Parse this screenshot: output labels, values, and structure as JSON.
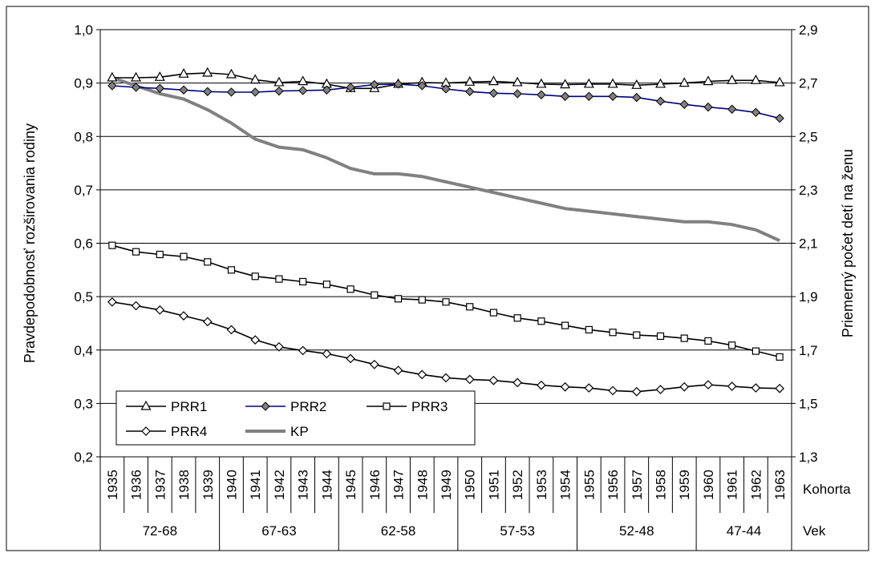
{
  "chart_data": {
    "type": "line",
    "title": "",
    "ylabel_left": "Pravdepodobnosť rozširovania rodiny",
    "ylabel_right": "Priemerný počet detí na ženu",
    "ylim_left": [
      0.2,
      1.0
    ],
    "ylim_right": [
      1.3,
      2.9
    ],
    "yticks_left": [
      "0,2",
      "0,3",
      "0,4",
      "0,5",
      "0,6",
      "0,7",
      "0,8",
      "0,9",
      "1,0"
    ],
    "yticks_right": [
      "1,3",
      "1,5",
      "1,7",
      "1,9",
      "2,1",
      "2,3",
      "2,5",
      "2,7",
      "2,9"
    ],
    "grid": true,
    "legend_position": "bottom-left",
    "x_axis_label": "Kohorta",
    "age_axis_label": "Vek",
    "x": [
      1935,
      1936,
      1937,
      1938,
      1939,
      1940,
      1941,
      1942,
      1943,
      1944,
      1945,
      1946,
      1947,
      1948,
      1949,
      1950,
      1951,
      1952,
      1953,
      1954,
      1955,
      1956,
      1957,
      1958,
      1959,
      1960,
      1961,
      1962,
      1963
    ],
    "age_groups": [
      {
        "label": "72-68",
        "from": 1935,
        "to": 1939
      },
      {
        "label": "67-63",
        "from": 1940,
        "to": 1944
      },
      {
        "label": "62-58",
        "from": 1945,
        "to": 1949
      },
      {
        "label": "57-53",
        "from": 1950,
        "to": 1954
      },
      {
        "label": "52-48",
        "from": 1955,
        "to": 1959
      },
      {
        "label": "47-44",
        "from": 1960,
        "to": 1963
      }
    ],
    "series": [
      {
        "name": "PRR1",
        "axis": "left",
        "color": "#000000",
        "marker": "triangle",
        "values": [
          0.91,
          0.91,
          0.911,
          0.917,
          0.919,
          0.916,
          0.906,
          0.901,
          0.903,
          0.898,
          0.89,
          0.89,
          0.898,
          0.901,
          0.9,
          0.902,
          0.903,
          0.901,
          0.898,
          0.897,
          0.898,
          0.898,
          0.896,
          0.898,
          0.9,
          0.903,
          0.905,
          0.905,
          0.901
        ]
      },
      {
        "name": "PRR2",
        "axis": "left",
        "color": "#000080",
        "marker": "diamond-filled",
        "values": [
          0.895,
          0.892,
          0.89,
          0.887,
          0.884,
          0.883,
          0.883,
          0.885,
          0.886,
          0.887,
          0.892,
          0.897,
          0.898,
          0.895,
          0.889,
          0.884,
          0.881,
          0.88,
          0.878,
          0.875,
          0.875,
          0.875,
          0.873,
          0.866,
          0.86,
          0.855,
          0.851,
          0.845,
          0.834
        ]
      },
      {
        "name": "PRR3",
        "axis": "left",
        "color": "#000000",
        "marker": "square",
        "values": [
          0.596,
          0.584,
          0.579,
          0.575,
          0.565,
          0.55,
          0.538,
          0.533,
          0.528,
          0.523,
          0.514,
          0.503,
          0.496,
          0.494,
          0.49,
          0.481,
          0.47,
          0.46,
          0.454,
          0.446,
          0.438,
          0.433,
          0.428,
          0.426,
          0.422,
          0.417,
          0.409,
          0.398,
          0.387
        ]
      },
      {
        "name": "PRR4",
        "axis": "left",
        "color": "#000000",
        "marker": "diamond",
        "values": [
          0.49,
          0.483,
          0.475,
          0.464,
          0.453,
          0.438,
          0.419,
          0.406,
          0.399,
          0.393,
          0.384,
          0.373,
          0.362,
          0.354,
          0.348,
          0.345,
          0.343,
          0.339,
          0.334,
          0.331,
          0.329,
          0.324,
          0.322,
          0.326,
          0.331,
          0.335,
          0.332,
          0.329,
          0.328
        ]
      },
      {
        "name": "KP",
        "axis": "right",
        "color": "#808080",
        "marker": "none",
        "values": [
          2.72,
          2.69,
          2.66,
          2.64,
          2.6,
          2.55,
          2.49,
          2.46,
          2.45,
          2.42,
          2.38,
          2.36,
          2.36,
          2.35,
          2.33,
          2.31,
          2.29,
          2.27,
          2.25,
          2.23,
          2.22,
          2.21,
          2.2,
          2.19,
          2.18,
          2.18,
          2.17,
          2.15,
          2.11
        ]
      }
    ]
  }
}
